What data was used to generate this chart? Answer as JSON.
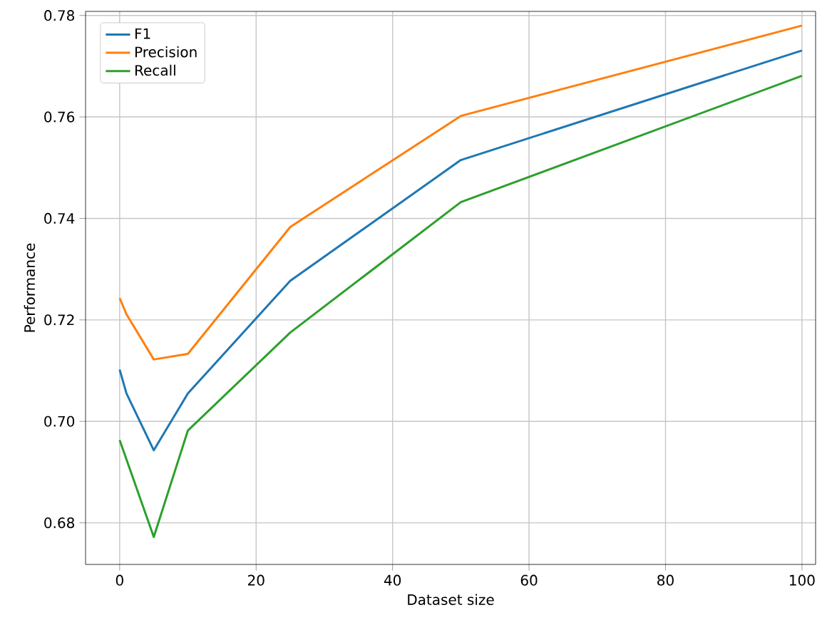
{
  "chart_data": {
    "type": "line",
    "xlabel": "Dataset size",
    "ylabel": "Performance",
    "x": [
      0,
      1,
      5,
      10,
      25,
      50,
      100
    ],
    "series": [
      {
        "name": "F1",
        "color": "#1f77b4",
        "values": [
          0.7102,
          0.7055,
          0.6943,
          0.7055,
          0.7277,
          0.7515,
          0.7731
        ]
      },
      {
        "name": "Precision",
        "color": "#ff7f0e",
        "values": [
          0.7243,
          0.7211,
          0.7122,
          0.7133,
          0.7383,
          0.7602,
          0.778
        ]
      },
      {
        "name": "Recall",
        "color": "#2ca02c",
        "values": [
          0.6963,
          0.6925,
          0.6772,
          0.6982,
          0.7175,
          0.7432,
          0.7681
        ]
      }
    ],
    "xlim": [
      -5,
      102
    ],
    "ylim": [
      0.6718,
      0.7808
    ],
    "xticks": [
      0,
      20,
      40,
      60,
      80,
      100
    ],
    "yticks": [
      {
        "value": 0.68,
        "label": "0.68"
      },
      {
        "value": 0.7,
        "label": "0.70"
      },
      {
        "value": 0.72,
        "label": "0.72"
      },
      {
        "value": 0.74,
        "label": "0.74"
      },
      {
        "value": 0.76,
        "label": "0.76"
      },
      {
        "value": 0.78,
        "label": "0.78"
      }
    ],
    "grid": true,
    "legend": "top left",
    "marker": "none",
    "line_style": "solid"
  }
}
